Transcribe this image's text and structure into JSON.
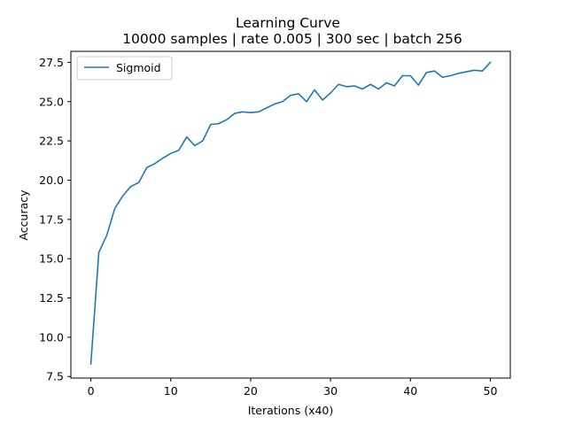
{
  "chart_data": {
    "type": "line",
    "title": "Learning Curve",
    "subtitle": "10000 samples | rate 0.005 | 300 sec | batch 256",
    "xlabel": "Iterations (x40)",
    "ylabel": "Accuracy",
    "xlim": [
      -2.5,
      52.5
    ],
    "ylim": [
      7.4,
      28.2
    ],
    "xticks": [
      0,
      10,
      20,
      30,
      40,
      50
    ],
    "xtick_labels": [
      "0",
      "10",
      "20",
      "30",
      "40",
      "50"
    ],
    "yticks": [
      7.5,
      10.0,
      12.5,
      15.0,
      17.5,
      20.0,
      22.5,
      25.0,
      27.5
    ],
    "ytick_labels": [
      "7.5",
      "10.0",
      "12.5",
      "15.0",
      "17.5",
      "20.0",
      "22.5",
      "25.0",
      "27.5"
    ],
    "grid": false,
    "legend_position": "top-left",
    "series": [
      {
        "name": "Sigmoid",
        "color": "#1f77b4",
        "x": [
          0,
          1,
          2,
          3,
          4,
          5,
          6,
          7,
          8,
          9,
          10,
          11,
          12,
          13,
          14,
          15,
          16,
          17,
          18,
          19,
          20,
          21,
          22,
          23,
          24,
          25,
          26,
          27,
          28,
          29,
          30,
          31,
          32,
          33,
          34,
          35,
          36,
          37,
          38,
          39,
          40,
          41,
          42,
          43,
          44,
          45,
          46,
          47,
          48,
          49,
          50
        ],
        "y": [
          8.3,
          15.4,
          16.5,
          18.2,
          19.0,
          19.6,
          19.85,
          20.8,
          21.05,
          21.4,
          21.7,
          21.9,
          22.75,
          22.2,
          22.5,
          23.55,
          23.6,
          23.85,
          24.25,
          24.35,
          24.3,
          24.35,
          24.6,
          24.85,
          25.0,
          25.4,
          25.5,
          25.0,
          25.75,
          25.1,
          25.55,
          26.1,
          25.95,
          26.0,
          25.8,
          26.1,
          25.8,
          26.2,
          26.0,
          26.65,
          26.65,
          26.05,
          26.85,
          26.95,
          26.55,
          26.65,
          26.8,
          26.9,
          27.0,
          26.95,
          27.5
        ]
      }
    ]
  }
}
